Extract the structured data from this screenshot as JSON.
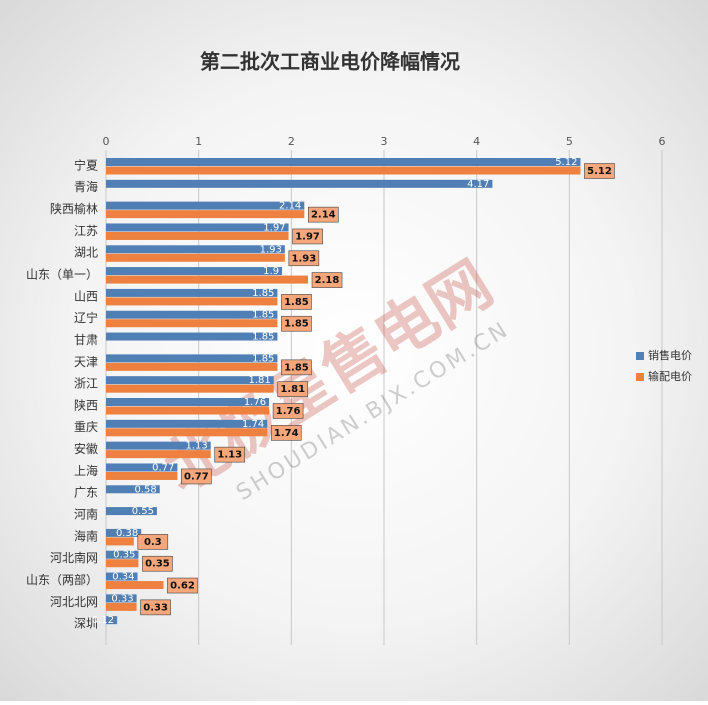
{
  "chart_data": {
    "type": "hbar",
    "title": "第二批次工商业电价降幅情况",
    "categories": [
      "宁夏",
      "青海",
      "陕西榆林",
      "江苏",
      "湖北",
      "山东（单一）",
      "山西",
      "辽宁",
      "甘肃",
      "天津",
      "浙江",
      "陕西",
      "重庆",
      "安徽",
      "上海",
      "广东",
      "河南",
      "海南",
      "河北南网",
      "山东（两部）",
      "河北北网",
      "深圳"
    ],
    "series": [
      {
        "name": "销售电价",
        "color": "#4f7fb5",
        "values": [
          5.12,
          4.17,
          2.14,
          1.97,
          1.93,
          1.9,
          1.85,
          1.85,
          1.85,
          1.85,
          1.81,
          1.76,
          1.74,
          1.13,
          0.77,
          0.58,
          0.55,
          0.38,
          0.35,
          0.34,
          0.33,
          0.12
        ]
      },
      {
        "name": "输配电价",
        "color": "#ee8040",
        "values": [
          5.12,
          null,
          2.14,
          1.97,
          1.93,
          2.18,
          1.85,
          1.85,
          null,
          1.85,
          1.81,
          1.76,
          1.74,
          1.13,
          0.77,
          null,
          null,
          0.3,
          0.35,
          0.62,
          0.33,
          null
        ]
      }
    ],
    "xlim": [
      0,
      6
    ],
    "xticks": [
      0,
      1,
      2,
      3,
      4,
      5,
      6
    ],
    "grid": true,
    "legend": "right",
    "watermark": {
      "text": "北极星售电网",
      "url": "SHOUDIAN.BJX.COM.CN"
    }
  }
}
